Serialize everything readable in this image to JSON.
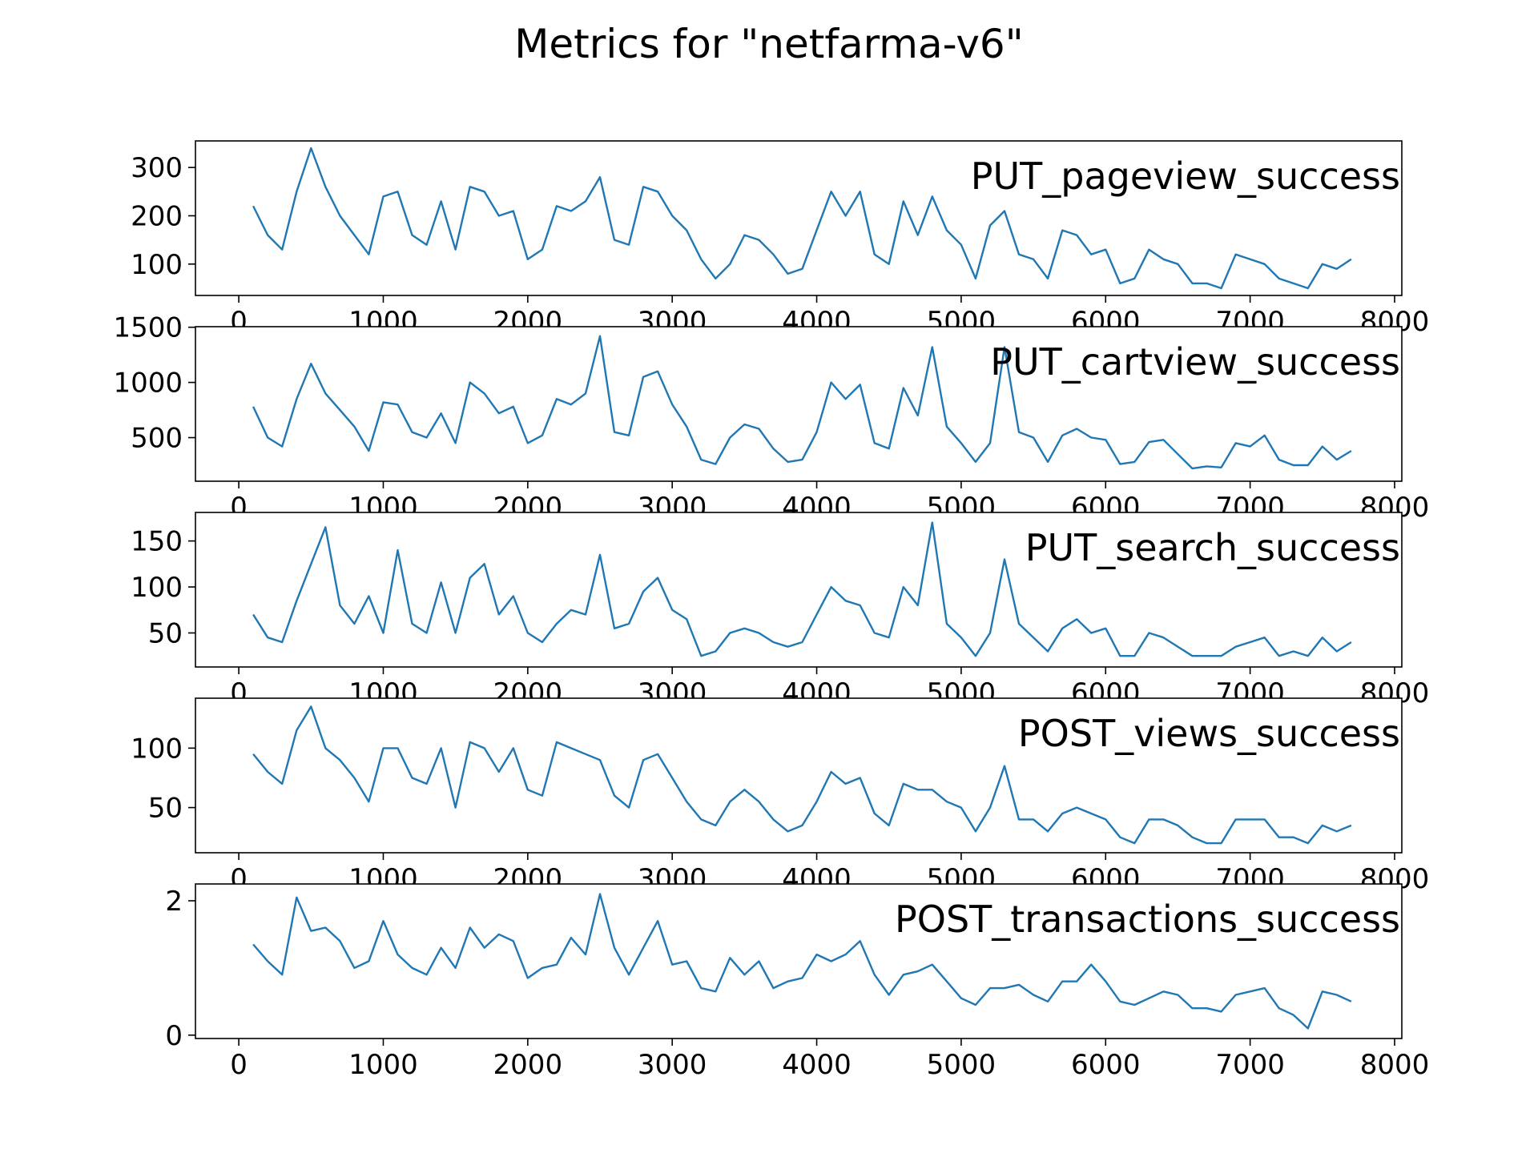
{
  "figure": {
    "suptitle": "Metrics for \"netfarma-v6\""
  },
  "chart_data": [
    {
      "type": "line",
      "label": "PUT_pageview_success",
      "xlim": [
        -300,
        8050
      ],
      "ylim": [
        35,
        355
      ],
      "xticks": [
        0,
        1000,
        2000,
        3000,
        4000,
        5000,
        6000,
        7000,
        8000
      ],
      "yticks": [
        100,
        200,
        300
      ],
      "grid": false,
      "color": "#1f77b4",
      "x": [
        100,
        200,
        300,
        400,
        500,
        600,
        700,
        800,
        900,
        1000,
        1100,
        1200,
        1300,
        1400,
        1500,
        1600,
        1700,
        1800,
        1900,
        2000,
        2100,
        2200,
        2300,
        2400,
        2500,
        2600,
        2700,
        2800,
        2900,
        3000,
        3100,
        3200,
        3300,
        3400,
        3500,
        3600,
        3700,
        3800,
        3900,
        4000,
        4100,
        4200,
        4300,
        4400,
        4500,
        4600,
        4700,
        4800,
        4900,
        5000,
        5100,
        5200,
        5300,
        5400,
        5500,
        5600,
        5700,
        5800,
        5900,
        6000,
        6100,
        6200,
        6300,
        6400,
        6500,
        6600,
        6700,
        6800,
        6900,
        7000,
        7100,
        7200,
        7300,
        7400,
        7500,
        7600,
        7700
      ],
      "values": [
        220,
        160,
        130,
        250,
        340,
        260,
        200,
        160,
        120,
        240,
        250,
        160,
        140,
        230,
        130,
        260,
        250,
        200,
        210,
        110,
        130,
        220,
        210,
        230,
        280,
        150,
        140,
        260,
        250,
        200,
        170,
        110,
        70,
        100,
        160,
        150,
        120,
        80,
        90,
        170,
        250,
        200,
        250,
        120,
        100,
        230,
        160,
        240,
        170,
        140,
        70,
        180,
        210,
        120,
        110,
        70,
        170,
        160,
        120,
        130,
        60,
        70,
        130,
        110,
        100,
        60,
        60,
        50,
        120,
        110,
        100,
        70,
        60,
        50,
        100,
        90,
        110
      ]
    },
    {
      "type": "line",
      "label": "PUT_cartview_success",
      "xlim": [
        -300,
        8050
      ],
      "ylim": [
        105,
        1505
      ],
      "xticks": [
        0,
        1000,
        2000,
        3000,
        4000,
        5000,
        6000,
        7000,
        8000
      ],
      "yticks": [
        500,
        1000,
        1500
      ],
      "grid": false,
      "color": "#1f77b4",
      "x": [
        100,
        200,
        300,
        400,
        500,
        600,
        700,
        800,
        900,
        1000,
        1100,
        1200,
        1300,
        1400,
        1500,
        1600,
        1700,
        1800,
        1900,
        2000,
        2100,
        2200,
        2300,
        2400,
        2500,
        2600,
        2700,
        2800,
        2900,
        3000,
        3100,
        3200,
        3300,
        3400,
        3500,
        3600,
        3700,
        3800,
        3900,
        4000,
        4100,
        4200,
        4300,
        4400,
        4500,
        4600,
        4700,
        4800,
        4900,
        5000,
        5100,
        5200,
        5300,
        5400,
        5500,
        5600,
        5700,
        5800,
        5900,
        6000,
        6100,
        6200,
        6300,
        6400,
        6500,
        6600,
        6700,
        6800,
        6900,
        7000,
        7100,
        7200,
        7300,
        7400,
        7500,
        7600,
        7700
      ],
      "values": [
        780,
        500,
        420,
        850,
        1170,
        900,
        750,
        600,
        380,
        820,
        800,
        550,
        500,
        720,
        450,
        1000,
        900,
        720,
        780,
        450,
        520,
        850,
        800,
        900,
        1420,
        550,
        520,
        1050,
        1100,
        800,
        600,
        300,
        260,
        500,
        620,
        580,
        400,
        280,
        300,
        550,
        1000,
        850,
        980,
        450,
        400,
        950,
        700,
        1320,
        600,
        450,
        280,
        450,
        1320,
        550,
        500,
        280,
        520,
        580,
        500,
        480,
        260,
        280,
        460,
        480,
        350,
        220,
        240,
        230,
        450,
        420,
        520,
        300,
        250,
        250,
        420,
        300,
        380
      ]
    },
    {
      "type": "line",
      "label": "PUT_search_success",
      "xlim": [
        -300,
        8050
      ],
      "ylim": [
        13,
        181
      ],
      "xticks": [
        0,
        1000,
        2000,
        3000,
        4000,
        5000,
        6000,
        7000,
        8000
      ],
      "yticks": [
        50,
        100,
        150
      ],
      "grid": false,
      "color": "#1f77b4",
      "x": [
        100,
        200,
        300,
        400,
        500,
        600,
        700,
        800,
        900,
        1000,
        1100,
        1200,
        1300,
        1400,
        1500,
        1600,
        1700,
        1800,
        1900,
        2000,
        2100,
        2200,
        2300,
        2400,
        2500,
        2600,
        2700,
        2800,
        2900,
        3000,
        3100,
        3200,
        3300,
        3400,
        3500,
        3600,
        3700,
        3800,
        3900,
        4000,
        4100,
        4200,
        4300,
        4400,
        4500,
        4600,
        4700,
        4800,
        4900,
        5000,
        5100,
        5200,
        5300,
        5400,
        5500,
        5600,
        5700,
        5800,
        5900,
        6000,
        6100,
        6200,
        6300,
        6400,
        6500,
        6600,
        6700,
        6800,
        6900,
        7000,
        7100,
        7200,
        7300,
        7400,
        7500,
        7600,
        7700
      ],
      "values": [
        70,
        45,
        40,
        85,
        125,
        165,
        80,
        60,
        90,
        50,
        140,
        60,
        50,
        105,
        50,
        110,
        125,
        70,
        90,
        50,
        40,
        60,
        75,
        70,
        135,
        55,
        60,
        95,
        110,
        75,
        65,
        25,
        30,
        50,
        55,
        50,
        40,
        35,
        40,
        70,
        100,
        85,
        80,
        50,
        45,
        100,
        80,
        170,
        60,
        45,
        25,
        50,
        130,
        60,
        45,
        30,
        55,
        65,
        50,
        55,
        25,
        25,
        50,
        45,
        35,
        25,
        25,
        25,
        35,
        40,
        45,
        25,
        30,
        25,
        45,
        30,
        40
      ]
    },
    {
      "type": "line",
      "label": "POST_views_success",
      "xlim": [
        -300,
        8050
      ],
      "ylim": [
        12,
        142
      ],
      "xticks": [
        0,
        1000,
        2000,
        3000,
        4000,
        5000,
        6000,
        7000,
        8000
      ],
      "yticks": [
        50,
        100
      ],
      "grid": false,
      "color": "#1f77b4",
      "x": [
        100,
        200,
        300,
        400,
        500,
        600,
        700,
        800,
        900,
        1000,
        1100,
        1200,
        1300,
        1400,
        1500,
        1600,
        1700,
        1800,
        1900,
        2000,
        2100,
        2200,
        2300,
        2400,
        2500,
        2600,
        2700,
        2800,
        2900,
        3000,
        3100,
        3200,
        3300,
        3400,
        3500,
        3600,
        3700,
        3800,
        3900,
        4000,
        4100,
        4200,
        4300,
        4400,
        4500,
        4600,
        4700,
        4800,
        4900,
        5000,
        5100,
        5200,
        5300,
        5400,
        5500,
        5600,
        5700,
        5800,
        5900,
        6000,
        6100,
        6200,
        6300,
        6400,
        6500,
        6600,
        6700,
        6800,
        6900,
        7000,
        7100,
        7200,
        7300,
        7400,
        7500,
        7600,
        7700
      ],
      "values": [
        95,
        80,
        70,
        115,
        135,
        100,
        90,
        75,
        55,
        100,
        100,
        75,
        70,
        100,
        50,
        105,
        100,
        80,
        100,
        65,
        60,
        105,
        100,
        95,
        90,
        60,
        50,
        90,
        95,
        75,
        55,
        40,
        35,
        55,
        65,
        55,
        40,
        30,
        35,
        55,
        80,
        70,
        75,
        45,
        35,
        70,
        65,
        65,
        55,
        50,
        30,
        50,
        85,
        40,
        40,
        30,
        45,
        50,
        45,
        40,
        25,
        20,
        40,
        40,
        35,
        25,
        20,
        20,
        40,
        40,
        40,
        25,
        25,
        20,
        35,
        30,
        35
      ]
    },
    {
      "type": "line",
      "label": "POST_transactions_success",
      "xlim": [
        -300,
        8050
      ],
      "ylim": [
        -0.05,
        2.25
      ],
      "xticks": [
        0,
        1000,
        2000,
        3000,
        4000,
        5000,
        6000,
        7000,
        8000
      ],
      "yticks": [
        0,
        2
      ],
      "grid": false,
      "color": "#1f77b4",
      "x": [
        100,
        200,
        300,
        400,
        500,
        600,
        700,
        800,
        900,
        1000,
        1100,
        1200,
        1300,
        1400,
        1500,
        1600,
        1700,
        1800,
        1900,
        2000,
        2100,
        2200,
        2300,
        2400,
        2500,
        2600,
        2700,
        2800,
        2900,
        3000,
        3100,
        3200,
        3300,
        3400,
        3500,
        3600,
        3700,
        3800,
        3900,
        4000,
        4100,
        4200,
        4300,
        4400,
        4500,
        4600,
        4700,
        4800,
        4900,
        5000,
        5100,
        5200,
        5300,
        5400,
        5500,
        5600,
        5700,
        5800,
        5900,
        6000,
        6100,
        6200,
        6300,
        6400,
        6500,
        6600,
        6700,
        6800,
        6900,
        7000,
        7100,
        7200,
        7300,
        7400,
        7500,
        7600,
        7700
      ],
      "values": [
        1.35,
        1.1,
        0.9,
        2.05,
        1.55,
        1.6,
        1.4,
        1.0,
        1.1,
        1.7,
        1.2,
        1.0,
        0.9,
        1.3,
        1.0,
        1.6,
        1.3,
        1.5,
        1.4,
        0.85,
        1.0,
        1.05,
        1.45,
        1.2,
        2.1,
        1.3,
        0.9,
        1.3,
        1.7,
        1.05,
        1.1,
        0.7,
        0.65,
        1.15,
        0.9,
        1.1,
        0.7,
        0.8,
        0.85,
        1.2,
        1.1,
        1.2,
        1.4,
        0.9,
        0.6,
        0.9,
        0.95,
        1.05,
        0.8,
        0.55,
        0.45,
        0.7,
        0.7,
        0.75,
        0.6,
        0.5,
        0.8,
        0.8,
        1.05,
        0.8,
        0.5,
        0.45,
        0.55,
        0.65,
        0.6,
        0.4,
        0.4,
        0.35,
        0.6,
        0.65,
        0.7,
        0.4,
        0.3,
        0.1,
        0.65,
        0.6,
        0.5
      ]
    }
  ]
}
